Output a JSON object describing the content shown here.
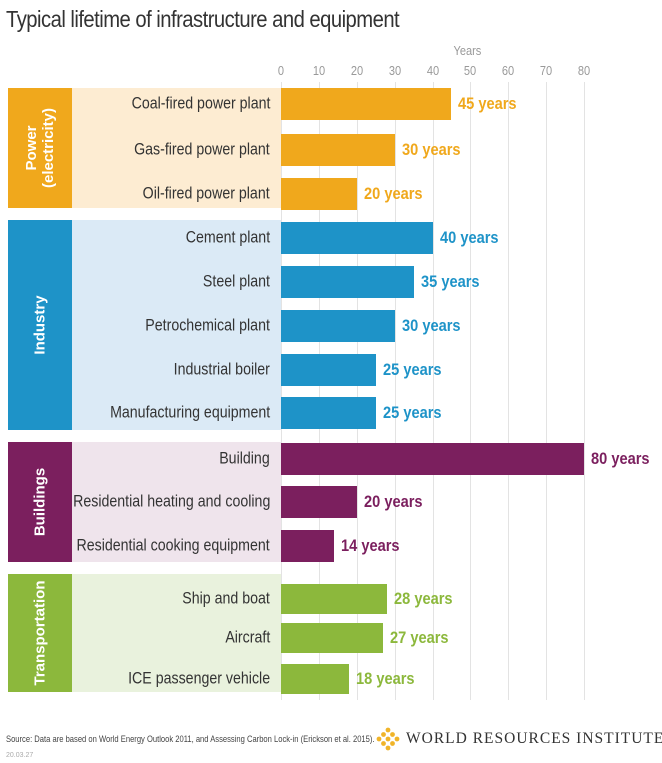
{
  "chart_data": {
    "type": "bar",
    "orientation": "horizontal",
    "title": "Typical lifetime of infrastructure and equipment",
    "xlabel": "Years",
    "xlim": [
      0,
      80
    ],
    "xticks": [
      "0",
      "10",
      "20",
      "30",
      "40",
      "50",
      "60",
      "70",
      "80"
    ],
    "grid": true,
    "groups": [
      {
        "name": "Power\n(electricity)",
        "color": "#f0a81c",
        "band_color": "#fdecd2",
        "items": [
          {
            "category": "Coal-fired power plant",
            "value": 45,
            "label": "45 years"
          },
          {
            "category": "Gas-fired power plant",
            "value": 30,
            "label": "30 years"
          },
          {
            "category": "Oil-fired power plant",
            "value": 20,
            "label": "20 years"
          }
        ]
      },
      {
        "name": "Industry",
        "color": "#1e93c8",
        "band_color": "#dbeaf6",
        "items": [
          {
            "category": "Cement plant",
            "value": 40,
            "label": "40 years"
          },
          {
            "category": "Steel plant",
            "value": 35,
            "label": "35 years"
          },
          {
            "category": "Petrochemical plant",
            "value": 30,
            "label": "30 years"
          },
          {
            "category": "Industrial boiler",
            "value": 25,
            "label": "25 years"
          },
          {
            "category": "Manufacturing equipment",
            "value": 25,
            "label": "25 years"
          }
        ]
      },
      {
        "name": "Buildings",
        "color": "#7b1f5e",
        "band_color": "#efe4ec",
        "items": [
          {
            "category": "Building",
            "value": 80,
            "label": "80 years"
          },
          {
            "category": "Residential heating and cooling",
            "value": 20,
            "label": "20 years"
          },
          {
            "category": "Residential cooking equipment",
            "value": 14,
            "label": "14 years"
          }
        ]
      },
      {
        "name": "Transportation",
        "color": "#8cb83c",
        "band_color": "#e9f2dd",
        "items": [
          {
            "category": "Ship and boat",
            "value": 28,
            "label": "28 years"
          },
          {
            "category": "Aircraft",
            "value": 27,
            "label": "27 years"
          },
          {
            "category": "ICE passenger vehicle",
            "value": 18,
            "label": "18 years"
          }
        ]
      }
    ]
  },
  "footer": {
    "source": "Source: Data are based on World Energy Outlook 2011, and Assessing Carbon Lock-in (Erickson et al. 2015).",
    "date": "20.03.27",
    "logo_text": "WORLD RESOURCES INSTITUTE"
  }
}
